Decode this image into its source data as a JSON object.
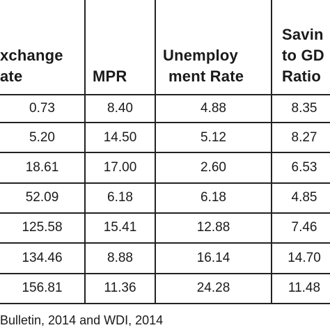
{
  "table": {
    "columns": [
      {
        "header_lines": [
          "xchange",
          "ate"
        ]
      },
      {
        "header_lines": [
          "MPR"
        ]
      },
      {
        "header_lines": [
          "Unemploy",
          "ment Rate"
        ]
      },
      {
        "header_lines": [
          "Savin",
          "to GD",
          "Ratio"
        ]
      }
    ],
    "rows": [
      [
        "0.73",
        "8.40",
        "4.88",
        "8.35"
      ],
      [
        "5.20",
        "14.50",
        "5.12",
        "8.27"
      ],
      [
        "18.61",
        "17.00",
        "2.60",
        "6.53"
      ],
      [
        "52.09",
        "6.18",
        "6.18",
        "4.85"
      ],
      [
        "125.58",
        "15.41",
        "12.88",
        "7.46"
      ],
      [
        "134.46",
        "8.88",
        "16.14",
        "14.70"
      ],
      [
        "156.81",
        "11.36",
        "24.28",
        "11.48"
      ]
    ]
  },
  "source_note": "Bulletin, 2014 and WDI, 2014"
}
